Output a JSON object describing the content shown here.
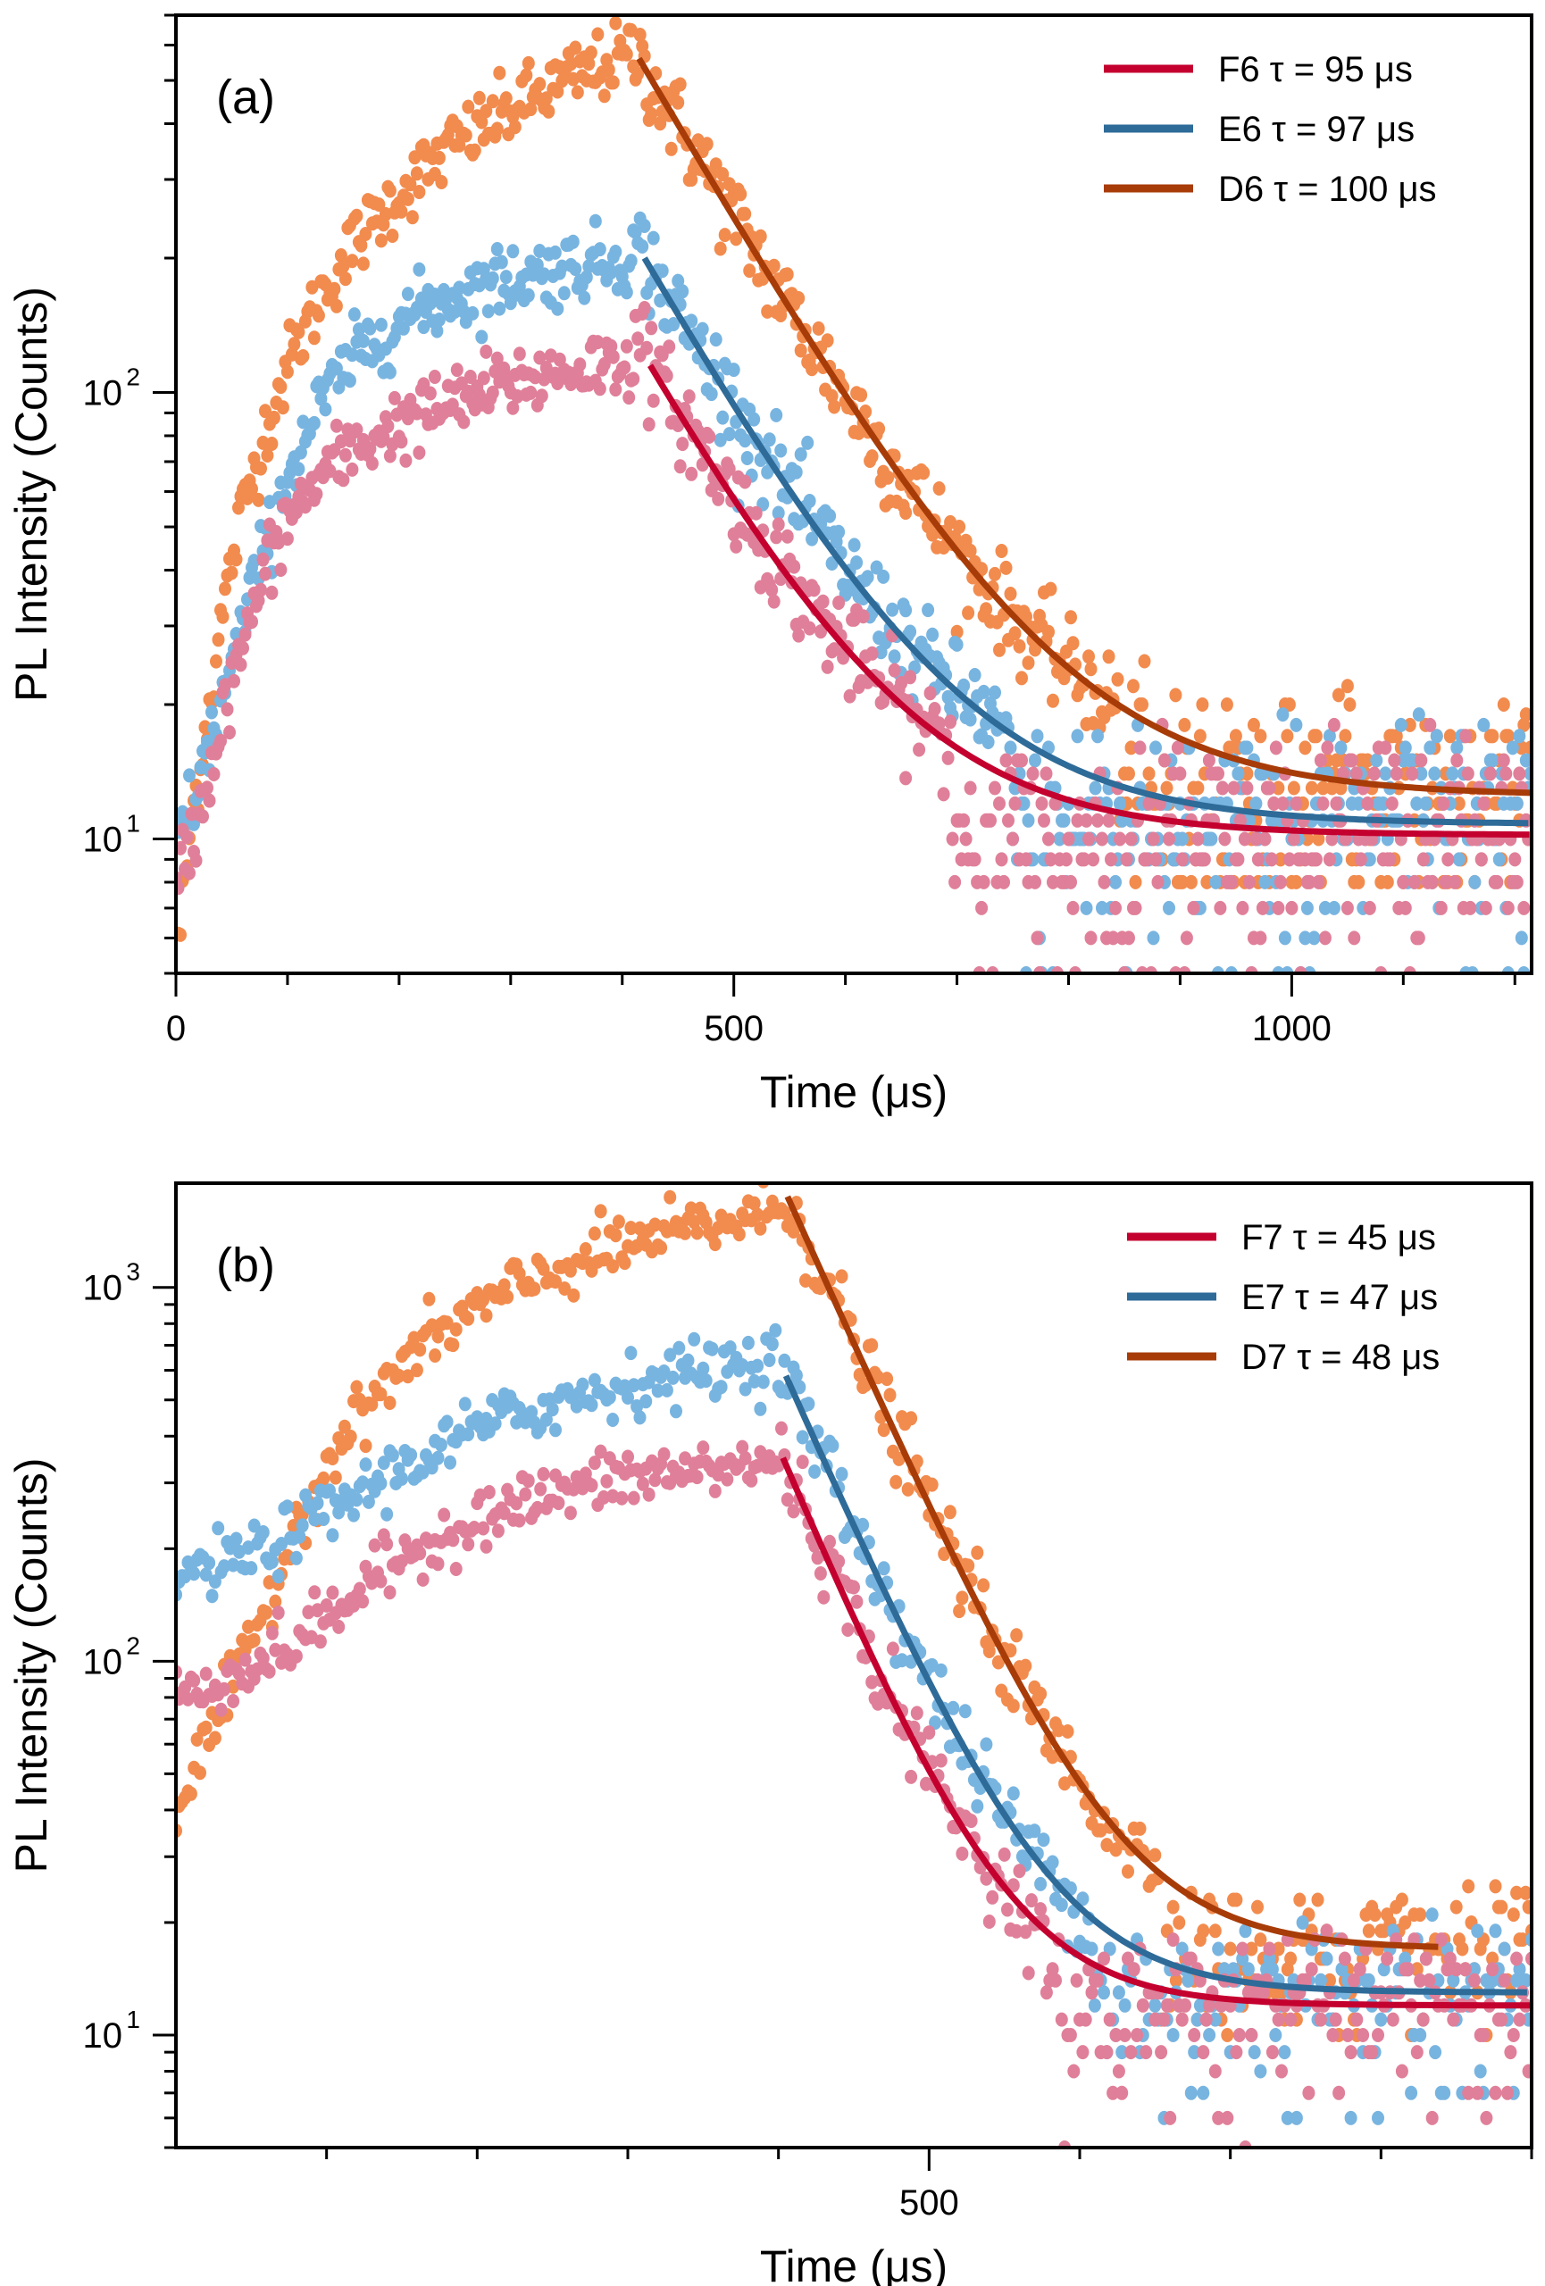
{
  "chart_data": [
    {
      "type": "scatter",
      "panel_label": "(a)",
      "xlabel": "Time (μs)",
      "ylabel": "PL Intensity (Counts)",
      "xlim": [
        0,
        1215
      ],
      "ylim": [
        5,
        700
      ],
      "yscale": "log",
      "xticks": [
        0,
        500,
        1000
      ],
      "xtick_labels": [
        "0",
        "500",
        "1000"
      ],
      "x_minor_step": 100,
      "yticks": [
        10,
        100
      ],
      "ytick_labels": [
        "10",
        "10"
      ],
      "ytick_exponents": [
        "1",
        "2"
      ],
      "legend_position": "top-right",
      "grid": false,
      "series": [
        {
          "name": "D6",
          "legend": "D6 τ = 100 μs",
          "tau_us": 100,
          "marker_color": "#f28b4e",
          "fit_color": "#a83c08",
          "rise_end_us": 410,
          "rise_points": [
            [
              0,
              5
            ],
            [
              10,
              9
            ],
            [
              20,
              14
            ],
            [
              30,
              20
            ],
            [
              40,
              30
            ],
            [
              50,
              42
            ],
            [
              60,
              55
            ],
            [
              80,
              82
            ],
            [
              100,
              115
            ],
            [
              130,
              165
            ],
            [
              160,
              215
            ],
            [
              200,
              280
            ],
            [
              250,
              360
            ],
            [
              300,
              430
            ],
            [
              350,
              500
            ],
            [
              400,
              560
            ],
            [
              410,
              580
            ]
          ],
          "fit": {
            "t0_us": 415,
            "peak": 560,
            "baseline": 12.5,
            "t_end_us": 1215
          },
          "tail_scatter_range": [
            8,
            30
          ]
        },
        {
          "name": "E6",
          "legend": "E6 τ = 97 μs",
          "tau_us": 97,
          "marker_color": "#78b4e0",
          "fit_color": "#2e6b98",
          "rise_end_us": 410,
          "rise_points": [
            [
              0,
              10
            ],
            [
              20,
              13
            ],
            [
              40,
              20
            ],
            [
              60,
              30
            ],
            [
              80,
              45
            ],
            [
              100,
              65
            ],
            [
              130,
              95
            ],
            [
              160,
              120
            ],
            [
              200,
              145
            ],
            [
              250,
              165
            ],
            [
              300,
              180
            ],
            [
              350,
              190
            ],
            [
              400,
              200
            ],
            [
              410,
              205
            ]
          ],
          "fit": {
            "t0_us": 420,
            "peak": 200,
            "baseline": 10.8,
            "t_end_us": 1215
          },
          "tail_scatter_range": [
            5,
            22
          ]
        },
        {
          "name": "F6",
          "legend": "F6 τ = 95 μs",
          "tau_us": 95,
          "marker_color": "#e07f99",
          "fit_color": "#c4002f",
          "rise_end_us": 410,
          "rise_points": [
            [
              0,
              8
            ],
            [
              20,
              11
            ],
            [
              40,
              18
            ],
            [
              60,
              27
            ],
            [
              80,
              40
            ],
            [
              100,
              52
            ],
            [
              130,
              65
            ],
            [
              160,
              75
            ],
            [
              200,
              85
            ],
            [
              250,
              95
            ],
            [
              300,
              105
            ],
            [
              350,
              112
            ],
            [
              400,
              118
            ],
            [
              410,
              120
            ]
          ],
          "fit": {
            "t0_us": 425,
            "peak": 115,
            "baseline": 10.2,
            "t_end_us": 1215
          },
          "tail_scatter_range": [
            5,
            20
          ]
        }
      ]
    },
    {
      "type": "scatter",
      "panel_label": "(b)",
      "xlabel": "Time (μs)",
      "ylabel": "PL Intensity (Counts)",
      "xlim": [
        0,
        900
      ],
      "ylim": [
        5,
        1900
      ],
      "yscale": "log",
      "xticks": [
        500
      ],
      "xtick_labels": [
        "500"
      ],
      "x_minor_step": 100,
      "yticks": [
        10,
        100,
        1000
      ],
      "ytick_labels": [
        "10",
        "10",
        "10"
      ],
      "ytick_exponents": [
        "1",
        "2",
        "3"
      ],
      "legend_position": "top-right",
      "grid": false,
      "series": [
        {
          "name": "D7",
          "legend": "D7 τ = 48 μs",
          "tau_us": 48,
          "marker_color": "#f28b4e",
          "fit_color": "#a83c08",
          "rise_end_us": 403,
          "rise_points": [
            [
              0,
              40
            ],
            [
              20,
              60
            ],
            [
              40,
              90
            ],
            [
              60,
              140
            ],
            [
              80,
              230
            ],
            [
              100,
              340
            ],
            [
              130,
              500
            ],
            [
              160,
              680
            ],
            [
              200,
              880
            ],
            [
              250,
              1100
            ],
            [
              300,
              1300
            ],
            [
              350,
              1450
            ],
            [
              400,
              1600
            ],
            [
              403,
              1620
            ]
          ],
          "fit": {
            "t0_us": 406,
            "peak": 1750,
            "baseline": 17,
            "t_end_us": 840
          },
          "tail_scatter_range": [
            10,
            30
          ]
        },
        {
          "name": "E7",
          "legend": "E7 τ = 47 μs",
          "tau_us": 47,
          "marker_color": "#78b4e0",
          "fit_color": "#2e6b98",
          "rise_end_us": 400,
          "rise_points": [
            [
              0,
              170
            ],
            [
              30,
              180
            ],
            [
              60,
              200
            ],
            [
              100,
              250
            ],
            [
              150,
              330
            ],
            [
              200,
              420
            ],
            [
              250,
              490
            ],
            [
              300,
              550
            ],
            [
              350,
              600
            ],
            [
              400,
              650
            ]
          ],
          "fit": {
            "t0_us": 405,
            "peak": 580,
            "baseline": 13,
            "t_end_us": 900
          },
          "tail_scatter_range": [
            6,
            24
          ]
        },
        {
          "name": "F7",
          "legend": "F7 τ = 45 μs",
          "tau_us": 45,
          "marker_color": "#e07f99",
          "fit_color": "#c4002f",
          "rise_end_us": 400,
          "rise_points": [
            [
              0,
              80
            ],
            [
              30,
              90
            ],
            [
              60,
              100
            ],
            [
              100,
              130
            ],
            [
              130,
              165
            ],
            [
              160,
              200
            ],
            [
              200,
              240
            ],
            [
              250,
              280
            ],
            [
              300,
              310
            ],
            [
              350,
              325
            ],
            [
              400,
              340
            ]
          ],
          "fit": {
            "t0_us": 403,
            "peak": 350,
            "baseline": 12,
            "t_end_us": 900
          },
          "tail_scatter_range": [
            5,
            20
          ]
        }
      ]
    }
  ]
}
